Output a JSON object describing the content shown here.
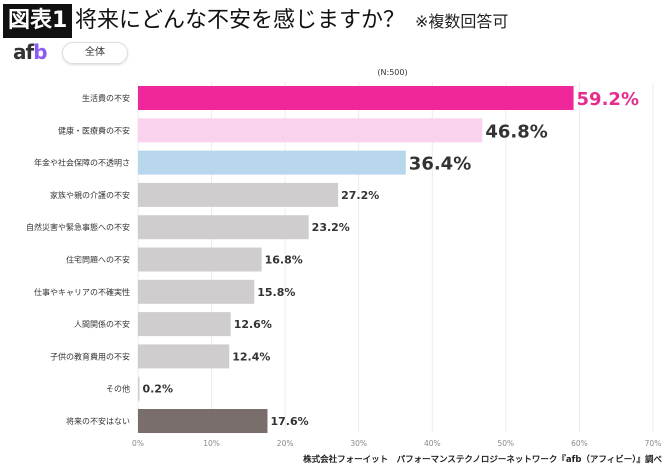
{
  "header": {
    "badge": "図表1",
    "title": "将来にどんな不安を感じますか？",
    "note": "※複数回答可"
  },
  "logo": "afb",
  "segment": "全体",
  "footer": "株式会社フォーイット　パフォーマンステクノロジーネットワーク『afb（アフィビー）』調べ",
  "chart_data": {
    "type": "bar",
    "orientation": "horizontal",
    "subtitle": "(N:500)",
    "categories": [
      "生活費の不安",
      "健康・医療費の不安",
      "年金や社会保障の不透明さ",
      "家族や親の介護の不安",
      "自然災害や緊急事態への不安",
      "住宅問題への不安",
      "仕事やキャリアの不確実性",
      "人間関係の不安",
      "子供の教育費用の不安",
      "その他",
      "将来の不安はない"
    ],
    "values": [
      59.2,
      46.8,
      36.4,
      27.2,
      23.2,
      16.8,
      15.8,
      12.6,
      12.4,
      0.2,
      17.6
    ],
    "labels": [
      "59.2%",
      "46.8%",
      "36.4%",
      "27.2%",
      "23.2%",
      "16.8%",
      "15.8%",
      "12.6%",
      "12.4%",
      "0.2%",
      "17.6%"
    ],
    "colors": [
      "#f0279b",
      "#f9d3ee",
      "#b8d7ec",
      "#d0cdce",
      "#d0cdce",
      "#d0cdce",
      "#d0cdce",
      "#d0cdce",
      "#d0cdce",
      "#d0cdce",
      "#7a6e6c"
    ],
    "label_colors": [
      "#e62d8f",
      "#333333",
      "#333333",
      "#333333",
      "#333333",
      "#333333",
      "#333333",
      "#333333",
      "#333333",
      "#333333",
      "#333333"
    ],
    "xlim": [
      0,
      70
    ],
    "xticks": [
      "0%",
      "10%",
      "20%",
      "30%",
      "40%",
      "50%",
      "60%",
      "70%"
    ],
    "grid": true
  }
}
